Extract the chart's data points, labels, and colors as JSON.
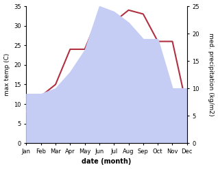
{
  "months": [
    "Jan",
    "Feb",
    "Mar",
    "Apr",
    "May",
    "Jun",
    "Jul",
    "Aug",
    "Sep",
    "Oct",
    "Nov",
    "Dec"
  ],
  "temperature": [
    8,
    12,
    15,
    24,
    24,
    33,
    31,
    34,
    33,
    26,
    26,
    9
  ],
  "precipitation": [
    9,
    9,
    10,
    13,
    17,
    25,
    24,
    22,
    19,
    19,
    10,
    10
  ],
  "temp_color": "#b03040",
  "precip_fill_color": "#c5cdf5",
  "temp_ylim": [
    0,
    35
  ],
  "precip_ylim": [
    0,
    25
  ],
  "temp_yticks": [
    0,
    5,
    10,
    15,
    20,
    25,
    30,
    35
  ],
  "precip_yticks": [
    0,
    5,
    10,
    15,
    20,
    25
  ],
  "xlabel": "date (month)",
  "ylabel_left": "max temp (C)",
  "ylabel_right": "med. precipitation (kg/m2)",
  "fig_width": 3.18,
  "fig_height": 2.47,
  "dpi": 100
}
